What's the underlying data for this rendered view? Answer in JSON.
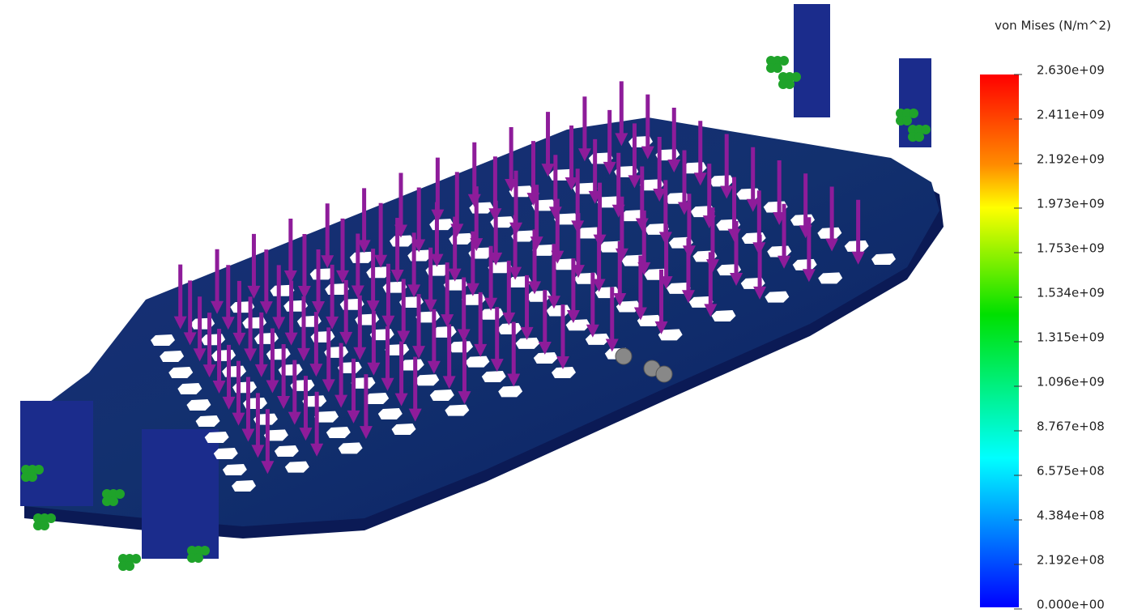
{
  "legend": {
    "title": "von Mises (N/m^2)",
    "labels": [
      "2.630e+09",
      "2.411e+09",
      "2.192e+09",
      "1.973e+09",
      "1.753e+09",
      "1.534e+09",
      "1.315e+09",
      "1.096e+09",
      "8.767e+08",
      "6.575e+08",
      "4.384e+08",
      "2.192e+08",
      "0.000e+00"
    ]
  }
}
